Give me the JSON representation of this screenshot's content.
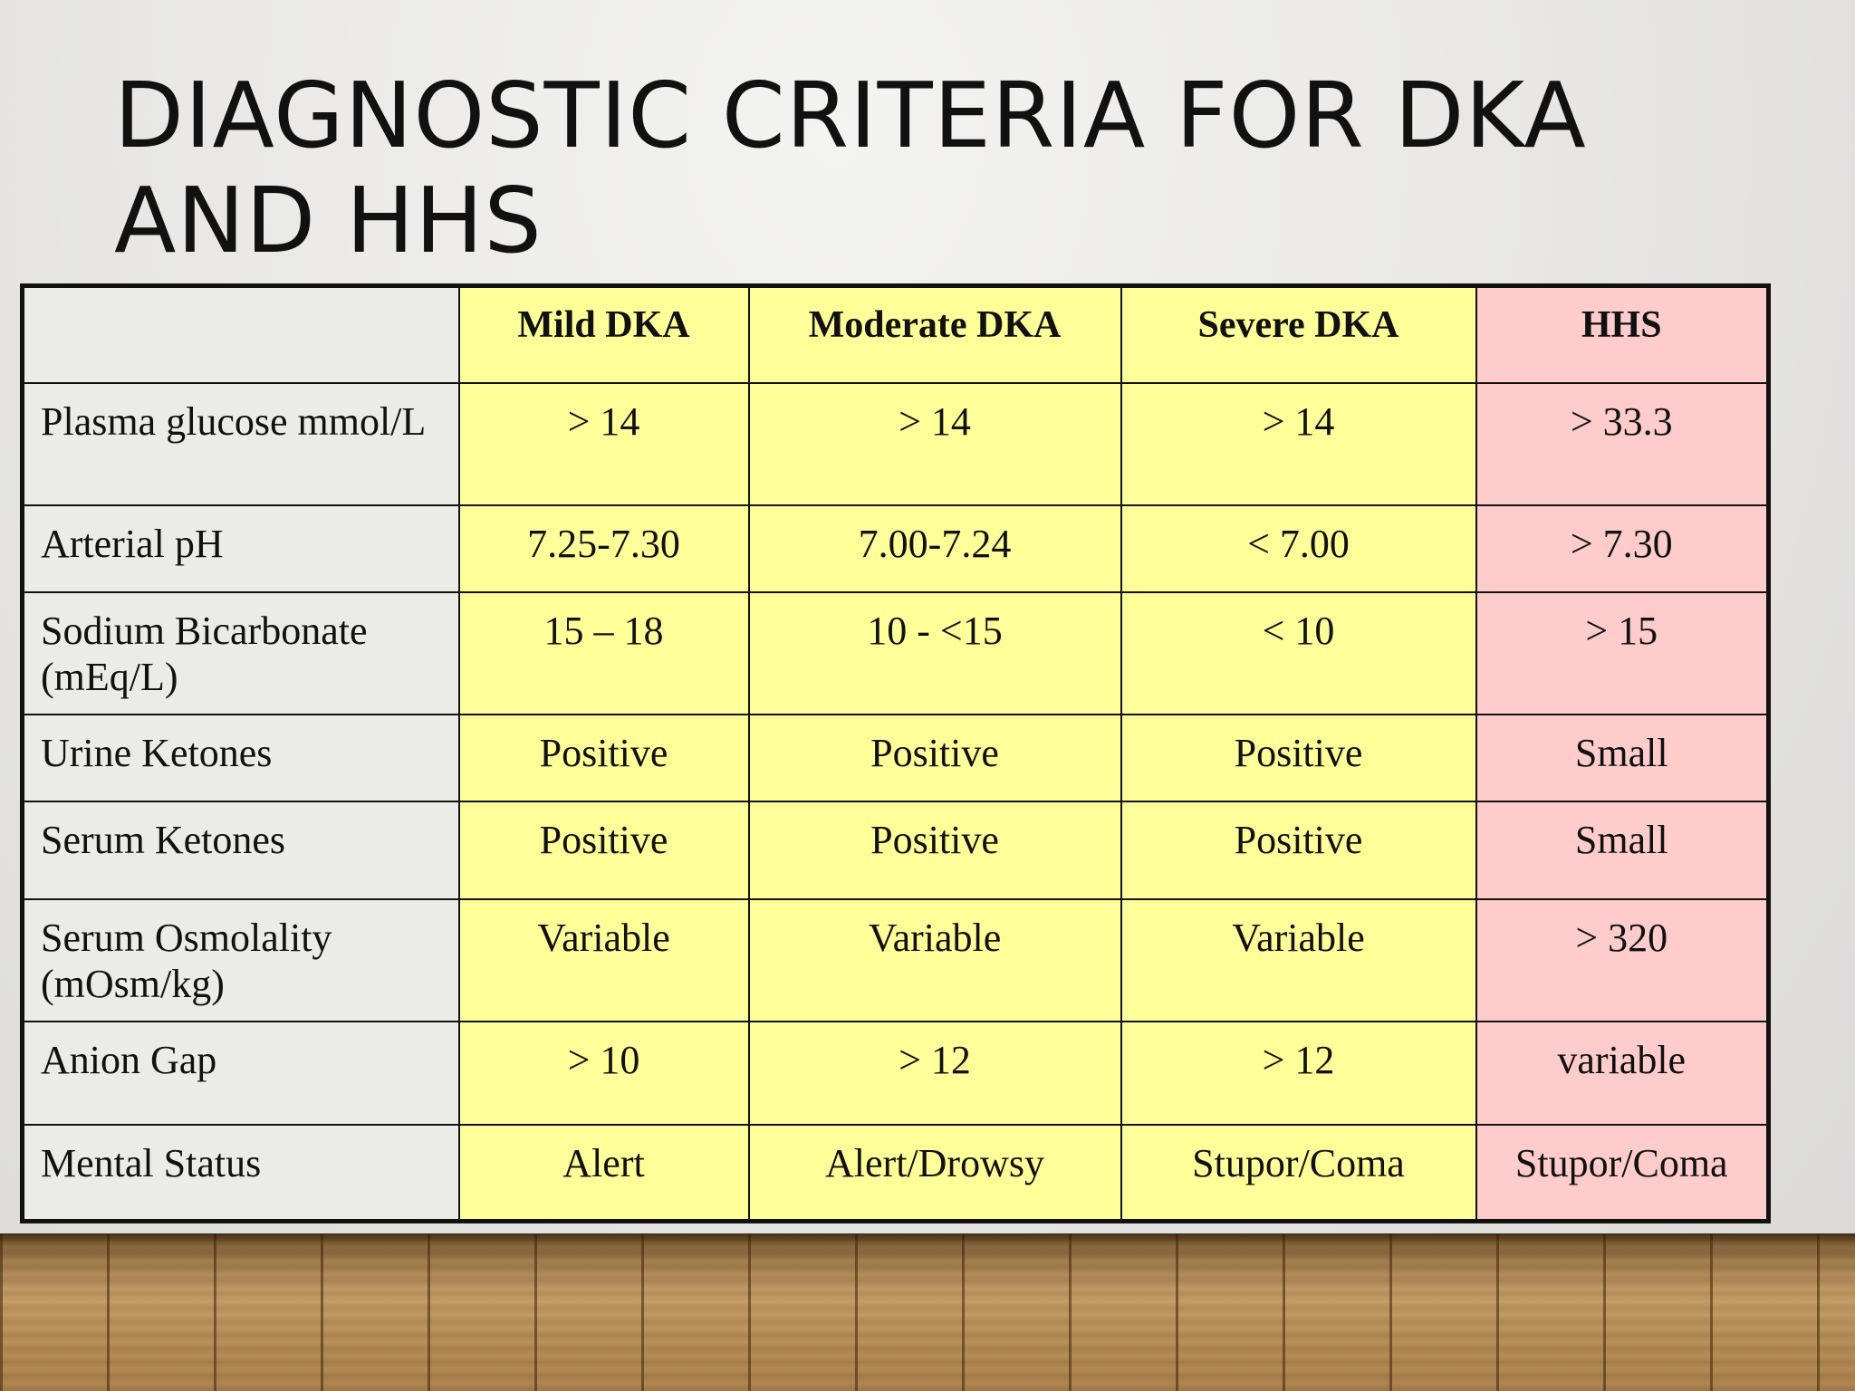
{
  "slide": {
    "title": "DIAGNOSTIC CRITERIA FOR DKA AND HHS"
  },
  "table": {
    "corner": "",
    "columns": [
      "Mild DKA",
      "Moderate DKA",
      "Severe DKA",
      "HHS"
    ],
    "rows": [
      {
        "label": "Plasma glucose mmol/L",
        "values": [
          "> 14",
          "> 14",
          "> 14",
          "> 33.3"
        ]
      },
      {
        "label": "Arterial pH",
        "values": [
          "7.25-7.30",
          "7.00-7.24",
          "< 7.00",
          "> 7.30"
        ]
      },
      {
        "label": "Sodium Bicarbonate (mEq/L)",
        "values": [
          "15 – 18",
          "10 - <15",
          "< 10",
          "> 15"
        ]
      },
      {
        "label": "Urine Ketones",
        "values": [
          "Positive",
          "Positive",
          "Positive",
          "Small"
        ]
      },
      {
        "label": "Serum Ketones",
        "values": [
          "Positive",
          "Positive",
          "Positive",
          "Small"
        ]
      },
      {
        "label": "Serum Osmolality (mOsm/kg)",
        "values": [
          "Variable",
          "Variable",
          "Variable",
          "> 320"
        ]
      },
      {
        "label": "Anion Gap",
        "values": [
          "> 10",
          "> 12",
          "> 12",
          "variable"
        ]
      },
      {
        "label": "Mental Status",
        "values": [
          "Alert",
          "Alert/Drowsy",
          "Stupor/Coma",
          "Stupor/Coma"
        ]
      }
    ]
  },
  "colors": {
    "dka_fill": "#ffff99",
    "hhs_fill": "#ffcccc",
    "label_fill": "#ebebe7",
    "border": "#111111"
  }
}
